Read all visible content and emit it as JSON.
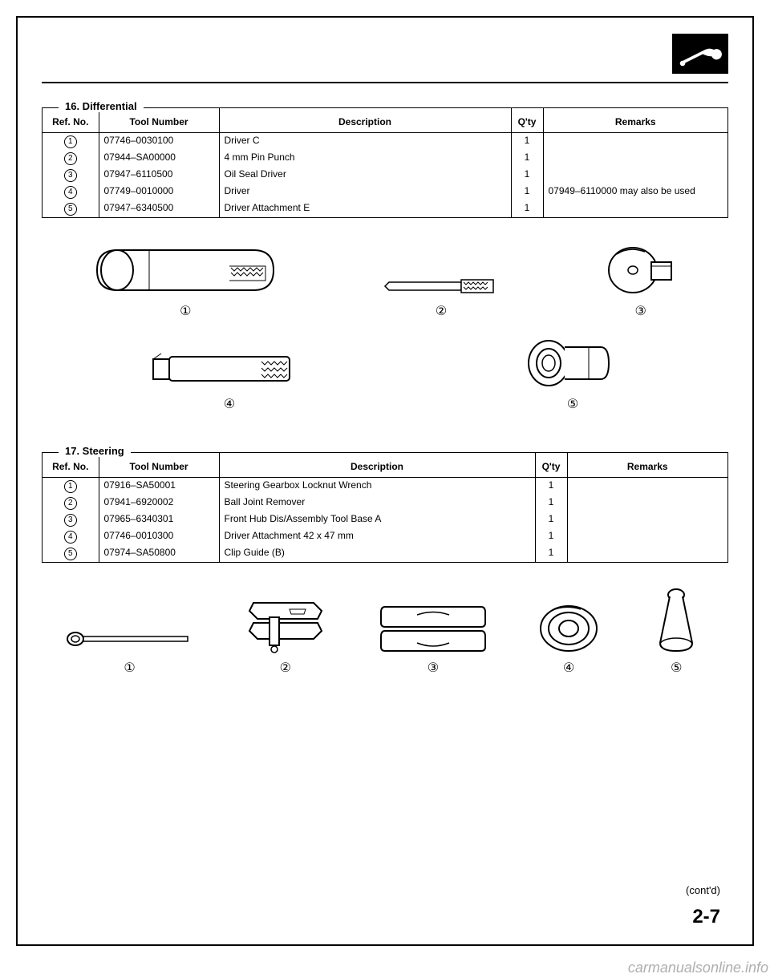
{
  "page": {
    "contd": "(cont'd)",
    "number": "2-7",
    "watermark": "carmanualsonline.info"
  },
  "section16": {
    "title": "16. Differential",
    "headers": {
      "ref": "Ref. No.",
      "tool": "Tool Number",
      "desc": "Description",
      "qty": "Q'ty",
      "remarks": "Remarks"
    },
    "rows": [
      {
        "ref": "1",
        "tool": "07746–0030100",
        "desc": "Driver C",
        "qty": "1",
        "remarks": ""
      },
      {
        "ref": "2",
        "tool": "07944–SA00000",
        "desc": "4 mm Pin Punch",
        "qty": "1",
        "remarks": ""
      },
      {
        "ref": "3",
        "tool": "07947–6110500",
        "desc": "Oil Seal Driver",
        "qty": "1",
        "remarks": ""
      },
      {
        "ref": "4",
        "tool": "07749–0010000",
        "desc": "Driver",
        "qty": "1",
        "remarks": "07949–6110000 may also be used"
      },
      {
        "ref": "5",
        "tool": "07947–6340500",
        "desc": "Driver Attachment E",
        "qty": "1",
        "remarks": ""
      }
    ],
    "illus_labels": [
      "①",
      "②",
      "③",
      "④",
      "⑤"
    ]
  },
  "section17": {
    "title": "17. Steering",
    "headers": {
      "ref": "Ref. No.",
      "tool": "Tool Number",
      "desc": "Description",
      "qty": "Q'ty",
      "remarks": "Remarks"
    },
    "rows": [
      {
        "ref": "1",
        "tool": "07916–SA50001",
        "desc": "Steering Gearbox Locknut Wrench",
        "qty": "1",
        "remarks": ""
      },
      {
        "ref": "2",
        "tool": "07941–6920002",
        "desc": "Ball Joint Remover",
        "qty": "1",
        "remarks": ""
      },
      {
        "ref": "3",
        "tool": "07965–6340301",
        "desc": "Front Hub Dis/Assembly Tool Base A",
        "qty": "1",
        "remarks": ""
      },
      {
        "ref": "4",
        "tool": "07746–0010300",
        "desc": "Driver Attachment 42 x 47 mm",
        "qty": "1",
        "remarks": ""
      },
      {
        "ref": "5",
        "tool": "07974–SA50800",
        "desc": "Clip Guide (B)",
        "qty": "1",
        "remarks": ""
      }
    ],
    "illus_labels": [
      "①",
      "②",
      "③",
      "④",
      "⑤"
    ]
  }
}
